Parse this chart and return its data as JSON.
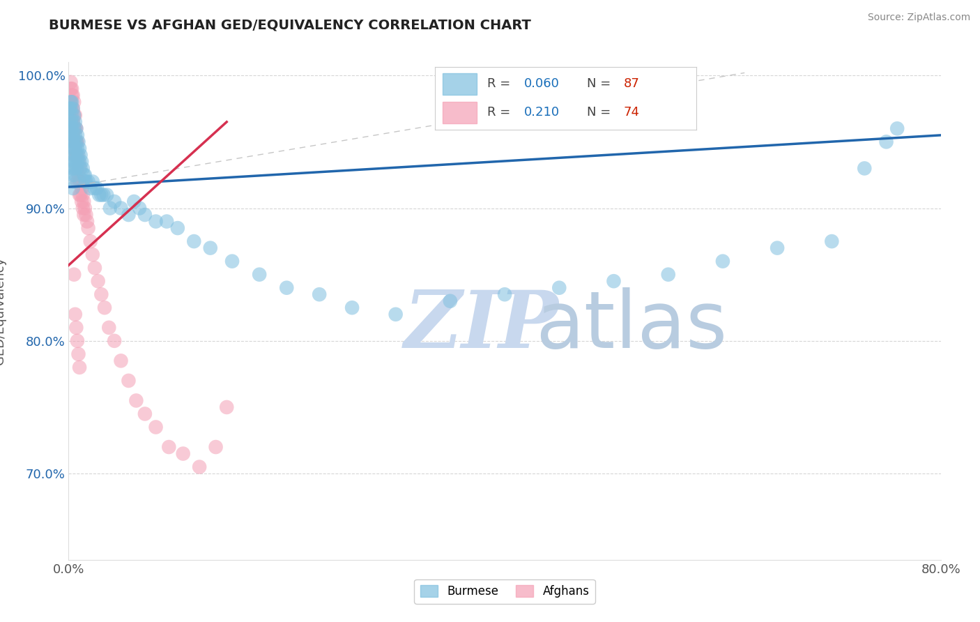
{
  "title": "BURMESE VS AFGHAN GED/EQUIVALENCY CORRELATION CHART",
  "source": "Source: ZipAtlas.com",
  "ylabel": "GED/Equivalency",
  "xlim": [
    0.0,
    0.8
  ],
  "ylim": [
    0.635,
    1.01
  ],
  "xticks": [
    0.0,
    0.2,
    0.4,
    0.6,
    0.8
  ],
  "xticklabels": [
    "0.0%",
    "",
    "",
    "",
    "80.0%"
  ],
  "yticks": [
    0.7,
    0.8,
    0.9,
    1.0
  ],
  "yticklabels": [
    "70.0%",
    "80.0%",
    "90.0%",
    "100.0%"
  ],
  "burmese_color": "#7fbfdf",
  "afghan_color": "#f4a0b5",
  "burmese_R": 0.06,
  "burmese_N": 87,
  "afghan_R": 0.21,
  "afghan_N": 74,
  "burmese_trendline": [
    0.0,
    0.8,
    0.916,
    0.955
  ],
  "afghan_trendline": [
    0.0,
    0.145,
    0.857,
    0.965
  ],
  "ref_line": [
    0.0,
    0.62,
    0.916,
    1.002
  ],
  "burmese_scatter_x": [
    0.001,
    0.001,
    0.002,
    0.002,
    0.002,
    0.002,
    0.003,
    0.003,
    0.003,
    0.003,
    0.003,
    0.003,
    0.004,
    0.004,
    0.004,
    0.004,
    0.004,
    0.004,
    0.004,
    0.005,
    0.005,
    0.005,
    0.005,
    0.005,
    0.005,
    0.006,
    0.006,
    0.006,
    0.006,
    0.006,
    0.007,
    0.007,
    0.007,
    0.007,
    0.008,
    0.008,
    0.008,
    0.009,
    0.009,
    0.01,
    0.01,
    0.011,
    0.011,
    0.012,
    0.013,
    0.014,
    0.015,
    0.015,
    0.016,
    0.018,
    0.02,
    0.022,
    0.024,
    0.026,
    0.028,
    0.03,
    0.032,
    0.035,
    0.038,
    0.042,
    0.048,
    0.055,
    0.06,
    0.065,
    0.07,
    0.08,
    0.09,
    0.1,
    0.115,
    0.13,
    0.15,
    0.175,
    0.2,
    0.23,
    0.26,
    0.3,
    0.35,
    0.4,
    0.45,
    0.5,
    0.55,
    0.6,
    0.65,
    0.7,
    0.73,
    0.75,
    0.76
  ],
  "burmese_scatter_y": [
    0.975,
    0.96,
    0.98,
    0.975,
    0.965,
    0.95,
    0.98,
    0.97,
    0.96,
    0.95,
    0.94,
    0.93,
    0.975,
    0.965,
    0.955,
    0.945,
    0.935,
    0.925,
    0.915,
    0.97,
    0.96,
    0.95,
    0.94,
    0.93,
    0.92,
    0.965,
    0.955,
    0.945,
    0.935,
    0.925,
    0.96,
    0.95,
    0.94,
    0.93,
    0.955,
    0.945,
    0.935,
    0.95,
    0.94,
    0.945,
    0.935,
    0.94,
    0.93,
    0.935,
    0.93,
    0.925,
    0.925,
    0.92,
    0.92,
    0.92,
    0.915,
    0.92,
    0.915,
    0.915,
    0.91,
    0.91,
    0.91,
    0.91,
    0.9,
    0.905,
    0.9,
    0.895,
    0.905,
    0.9,
    0.895,
    0.89,
    0.89,
    0.885,
    0.875,
    0.87,
    0.86,
    0.85,
    0.84,
    0.835,
    0.825,
    0.82,
    0.83,
    0.835,
    0.84,
    0.845,
    0.85,
    0.86,
    0.87,
    0.875,
    0.93,
    0.95,
    0.96
  ],
  "afghan_scatter_x": [
    0.001,
    0.001,
    0.001,
    0.002,
    0.002,
    0.002,
    0.002,
    0.002,
    0.003,
    0.003,
    0.003,
    0.003,
    0.003,
    0.004,
    0.004,
    0.004,
    0.004,
    0.004,
    0.005,
    0.005,
    0.005,
    0.005,
    0.006,
    0.006,
    0.006,
    0.006,
    0.007,
    0.007,
    0.007,
    0.008,
    0.008,
    0.008,
    0.008,
    0.009,
    0.009,
    0.01,
    0.01,
    0.01,
    0.011,
    0.011,
    0.012,
    0.012,
    0.013,
    0.013,
    0.014,
    0.014,
    0.015,
    0.016,
    0.017,
    0.018,
    0.02,
    0.022,
    0.024,
    0.027,
    0.03,
    0.033,
    0.037,
    0.042,
    0.048,
    0.055,
    0.062,
    0.07,
    0.08,
    0.092,
    0.105,
    0.12,
    0.135,
    0.145,
    0.005,
    0.006,
    0.007,
    0.008,
    0.009,
    0.01
  ],
  "afghan_scatter_y": [
    0.98,
    0.975,
    0.965,
    0.995,
    0.99,
    0.98,
    0.97,
    0.96,
    0.99,
    0.985,
    0.975,
    0.965,
    0.955,
    0.985,
    0.975,
    0.965,
    0.955,
    0.945,
    0.98,
    0.97,
    0.96,
    0.95,
    0.97,
    0.96,
    0.95,
    0.94,
    0.96,
    0.95,
    0.94,
    0.95,
    0.94,
    0.93,
    0.92,
    0.935,
    0.925,
    0.93,
    0.92,
    0.91,
    0.92,
    0.91,
    0.915,
    0.905,
    0.91,
    0.9,
    0.905,
    0.895,
    0.9,
    0.895,
    0.89,
    0.885,
    0.875,
    0.865,
    0.855,
    0.845,
    0.835,
    0.825,
    0.81,
    0.8,
    0.785,
    0.77,
    0.755,
    0.745,
    0.735,
    0.72,
    0.715,
    0.705,
    0.72,
    0.75,
    0.85,
    0.82,
    0.81,
    0.8,
    0.79,
    0.78
  ],
  "grid_color": "#cccccc",
  "watermark_zip": "ZIP",
  "watermark_atlas": "atlas",
  "watermark_color_zip": "#c8d8ee",
  "watermark_color_atlas": "#b8cce0",
  "background_color": "#ffffff",
  "legend_R_color": "#1a6fba",
  "legend_N_color": "#cc2200"
}
